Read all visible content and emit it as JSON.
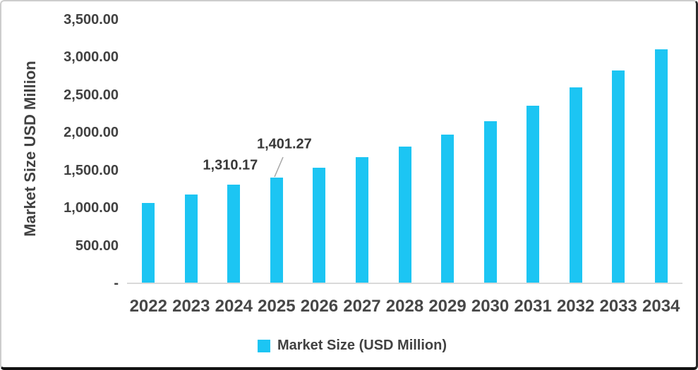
{
  "chart_data": {
    "type": "bar",
    "title": "",
    "categories": [
      "2022",
      "2023",
      "2024",
      "2025",
      "2026",
      "2027",
      "2028",
      "2029",
      "2030",
      "2031",
      "2032",
      "2033",
      "2034"
    ],
    "values": [
      1063,
      1182,
      1310.17,
      1401.27,
      1531,
      1674,
      1811,
      1976,
      2148,
      2351,
      2598,
      2820,
      3101
    ],
    "series_name": "Market Size (USD Million)",
    "xlabel": "",
    "ylabel": "Market Size USD Million",
    "ylim": [
      0,
      3500
    ],
    "y_tick_step": 500,
    "y_tick_labels": [
      "3,500.00",
      "3,000.00",
      "2,500.00",
      "2,000.00",
      "1,500.00",
      "1,000.00",
      "500.00",
      "-"
    ],
    "grid": false,
    "legend_position": "bottom",
    "data_labels": [
      {
        "category": "2024",
        "text": "1,310.17",
        "leader_line": false
      },
      {
        "category": "2025",
        "text": "1,401.27",
        "leader_line": true
      }
    ]
  },
  "colors": {
    "bar": "#1CC5F3",
    "text": "#414141",
    "axis_line": "#D9D9D9",
    "leader_line": "#A6A6A6",
    "background": "#FFFFFF"
  }
}
